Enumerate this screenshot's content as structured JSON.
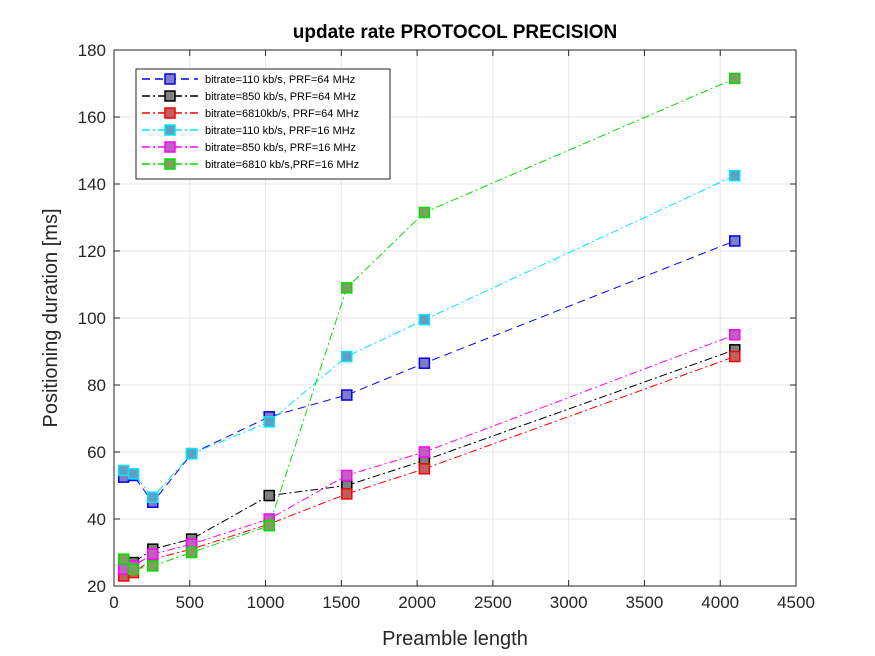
{
  "chart_data": {
    "type": "line",
    "title": "update rate PROTOCOL PRECISION",
    "xlabel": "Preamble length",
    "ylabel": "Positioning duration [ms]",
    "xlim": [
      0,
      4500
    ],
    "ylim": [
      20,
      180
    ],
    "xticks": [
      0,
      500,
      1000,
      1500,
      2000,
      2500,
      3000,
      3500,
      4000,
      4500
    ],
    "yticks": [
      20,
      40,
      60,
      80,
      100,
      120,
      140,
      160,
      180
    ],
    "grid": true,
    "legend_position": "top-left",
    "series": [
      {
        "name": "bitrate=110 kb/s, PRF=64 MHz",
        "color": "#0000ff",
        "marker_fill": "#7f7fbf",
        "dash": "8,5",
        "x": [
          64,
          128,
          256,
          512,
          1024,
          1536,
          2048,
          4096
        ],
        "y": [
          52.5,
          53,
          45,
          59.5,
          70.5,
          77,
          86.5,
          123
        ]
      },
      {
        "name": "bitrate=850 kb/s, PRF=64 MHz",
        "color": "#000000",
        "marker_fill": "#808080",
        "dash": "8,3,2,3",
        "x": [
          64,
          128,
          256,
          512,
          1024,
          1536,
          2048,
          4096
        ],
        "y": [
          24,
          27,
          31,
          34,
          47,
          50,
          57.5,
          90.5
        ]
      },
      {
        "name": "bitrate=6810kb/s, PRF=64 MHz",
        "color": "#ff0000",
        "marker_fill": "#bf5f5f",
        "dash": "8,3,2,3",
        "x": [
          64,
          128,
          256,
          512,
          1024,
          1536,
          2048,
          4096
        ],
        "y": [
          23,
          24,
          28,
          31,
          38.5,
          47.5,
          55,
          88.5
        ]
      },
      {
        "name": "bitrate=110 kb/s, PRF=16 MHz",
        "color": "#00e5ff",
        "marker_fill": "#5f9fbf",
        "dash": "8,3,2,3",
        "x": [
          64,
          128,
          256,
          512,
          1024,
          1536,
          2048,
          4096
        ],
        "y": [
          54.5,
          53.5,
          46.5,
          59.5,
          69,
          88.5,
          99.5,
          142.5
        ]
      },
      {
        "name": "bitrate=850 kb/s, PRF=16 MHz",
        "color": "#ff00ff",
        "marker_fill": "#bf5fbf",
        "dash": "8,3,2,3",
        "x": [
          64,
          128,
          256,
          512,
          1024,
          1536,
          2048,
          4096
        ],
        "y": [
          25,
          26,
          29.5,
          32.5,
          40,
          53,
          60,
          95
        ]
      },
      {
        "name": "bitrate=6810 kb/s,PRF=16 MHz",
        "color": "#00dd00",
        "marker_fill": "#7f9f5f",
        "dash": "8,3,2,3",
        "x": [
          64,
          128,
          256,
          512,
          1024,
          1536,
          2048,
          4096
        ],
        "y": [
          28,
          25,
          26,
          30,
          38,
          109,
          131.5,
          171.5
        ]
      }
    ]
  }
}
